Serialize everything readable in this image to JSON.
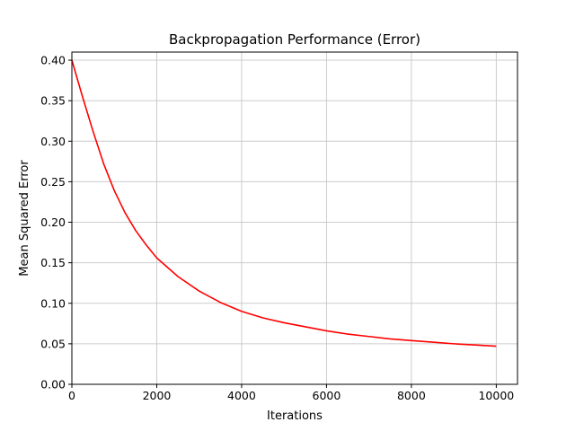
{
  "chart_data": {
    "type": "line",
    "title": "Backpropagation Performance (Error)",
    "xlabel": "Iterations",
    "ylabel": "Mean Squared Error",
    "xlim": [
      0,
      10500
    ],
    "ylim": [
      0,
      0.41
    ],
    "grid": true,
    "line_color": "#ff0000",
    "grid_color": "#cccccc",
    "x_ticks": [
      0,
      2000,
      4000,
      6000,
      8000,
      10000
    ],
    "x_tick_labels": [
      "0",
      "2000",
      "4000",
      "6000",
      "8000",
      "10000"
    ],
    "y_ticks": [
      0,
      0.05,
      0.1,
      0.15,
      0.2,
      0.25,
      0.3,
      0.35,
      0.4
    ],
    "y_tick_labels": [
      "0.00",
      "0.05",
      "0.10",
      "0.15",
      "0.20",
      "0.25",
      "0.30",
      "0.35",
      "0.40"
    ],
    "series": [
      {
        "x": [
          0,
          250,
          500,
          750,
          1000,
          1250,
          1500,
          1750,
          2000,
          2500,
          3000,
          3500,
          4000,
          4500,
          5000,
          5500,
          6000,
          6500,
          7000,
          7500,
          8000,
          8500,
          9000,
          9500,
          10000
        ],
        "values": [
          0.4,
          0.355,
          0.312,
          0.272,
          0.239,
          0.212,
          0.19,
          0.172,
          0.156,
          0.133,
          0.115,
          0.101,
          0.09,
          0.082,
          0.076,
          0.071,
          0.066,
          0.062,
          0.059,
          0.056,
          0.054,
          0.052,
          0.05,
          0.0485,
          0.047
        ]
      }
    ]
  }
}
